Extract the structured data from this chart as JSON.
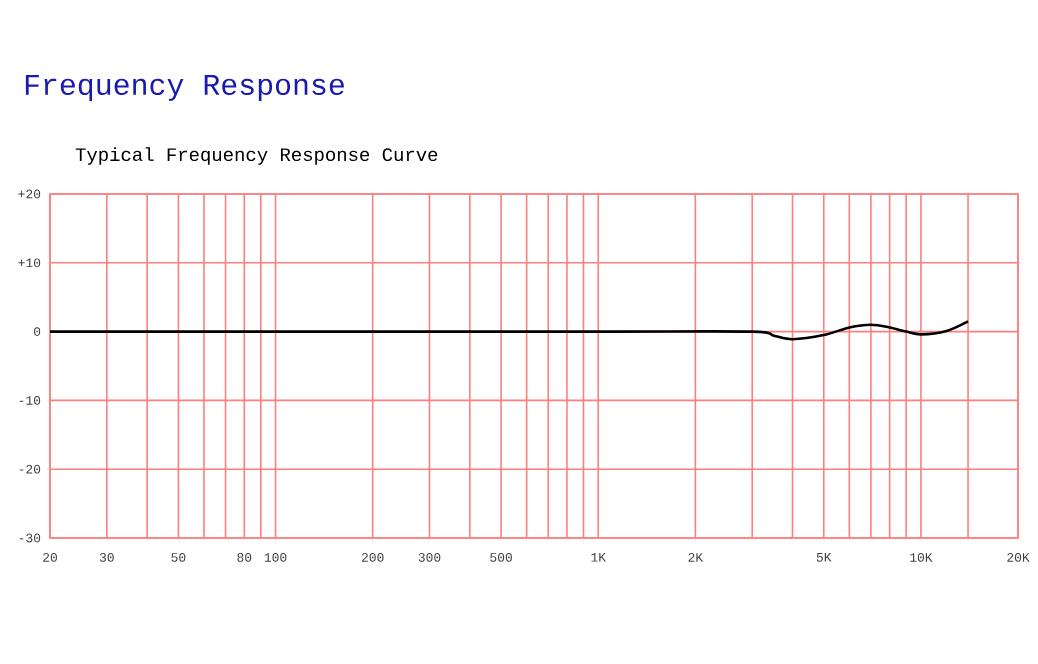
{
  "chart_data": {
    "type": "line",
    "title": "Frequency Response",
    "subtitle": "Typical Frequency Response Curve",
    "log": "x",
    "grid": true,
    "marker": "none",
    "line_style": "solid",
    "xlim": [
      20,
      20000
    ],
    "ylim": [
      -30,
      20
    ],
    "xticks": [
      20,
      30,
      {
        "value": 40,
        "label": null
      },
      50,
      {
        "value": 60,
        "label": null
      },
      {
        "value": 70,
        "label": null
      },
      80,
      {
        "value": 90,
        "label": null
      },
      100,
      200,
      300,
      {
        "value": 400,
        "label": null
      },
      500,
      {
        "value": 600,
        "label": null
      },
      {
        "value": 700,
        "label": null
      },
      {
        "value": 800,
        "label": null
      },
      {
        "value": 900,
        "label": null
      },
      {
        "value": 1000,
        "label": "1K"
      },
      {
        "value": 2000,
        "label": "2K"
      },
      {
        "value": 3000,
        "label": null
      },
      {
        "value": 4000,
        "label": null
      },
      {
        "value": 5000,
        "label": "5K"
      },
      {
        "value": 6000,
        "label": null
      },
      {
        "value": 7000,
        "label": null
      },
      {
        "value": 8000,
        "label": null
      },
      {
        "value": 9000,
        "label": null
      },
      {
        "value": 10000,
        "label": "10K"
      },
      {
        "value": 14000,
        "label": null
      },
      {
        "value": 20000,
        "label": "20K"
      }
    ],
    "yticks": [
      {
        "value": 20,
        "label": "+20"
      },
      {
        "value": 10,
        "label": "+10"
      },
      0,
      -10,
      -20,
      -30
    ],
    "series": [
      {
        "color": "#000000",
        "x": [
          20,
          100,
          1000,
          3000,
          3500,
          4000,
          5000,
          6000,
          7000,
          8000,
          9000,
          10000,
          12000,
          14000
        ],
        "values": [
          0,
          0,
          0,
          0,
          -0.6,
          -1.1,
          -0.5,
          0.6,
          1.0,
          0.6,
          0,
          -0.4,
          0.1,
          1.5
        ]
      }
    ]
  }
}
